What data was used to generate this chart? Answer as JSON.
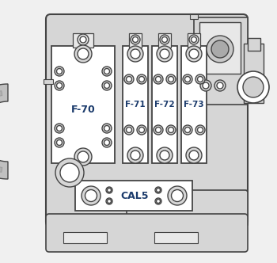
{
  "bg_color": "#f0f0f0",
  "main_fill": "#d6d6d6",
  "light_fill": "#e8e8e8",
  "white_fill": "#ffffff",
  "dark_edge": "#444444",
  "mid_edge": "#666666",
  "fuse_label_color": "#1a3a6b",
  "fuse_labels": [
    "F-70",
    "F-71",
    "F-72",
    "F-73"
  ],
  "cal_label": "CAL5",
  "lw": 1.0
}
